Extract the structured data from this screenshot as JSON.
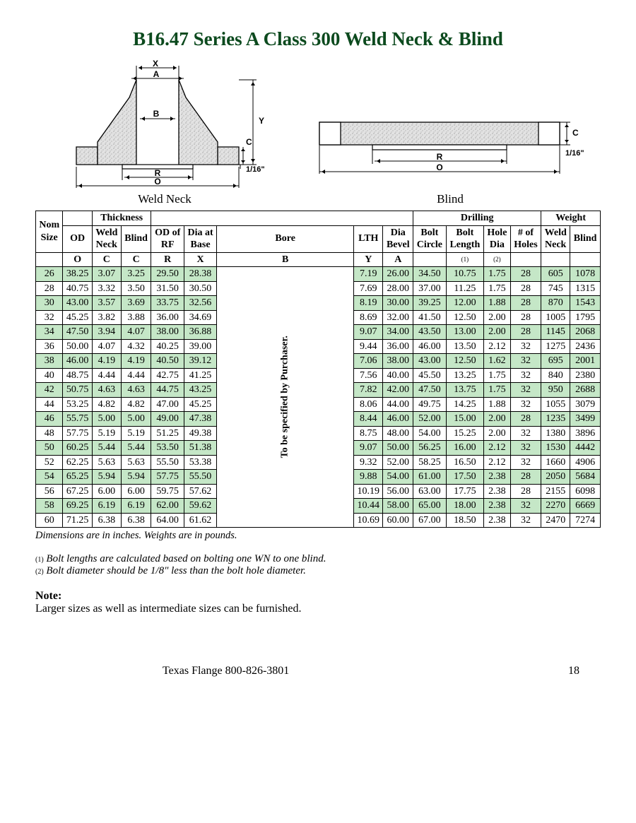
{
  "title": "B16.47 Series A Class 300 Weld Neck & Blind",
  "title_color": "#0c4a1e",
  "diagrams": {
    "weld_neck_caption": "Weld Neck",
    "blind_caption": "Blind",
    "dim_labels": {
      "X": "X",
      "A": "A",
      "B": "B",
      "Y": "Y",
      "C": "C",
      "R": "R",
      "O": "O",
      "sixteenth": "1/16\""
    },
    "fill_color": "#d9d9d9",
    "stroke_color": "#000000"
  },
  "table": {
    "header_groups": {
      "nom_size": "Nom\nSize",
      "thickness": "Thickness",
      "drilling": "Drilling",
      "weight": "Weight"
    },
    "columns_row2": {
      "od": "OD",
      "weld_neck": "Weld\nNeck",
      "blind": "Blind",
      "od_of_rf": "OD of\nRF",
      "dia_at_base": "Dia at\nBase",
      "bore": "Bore",
      "lth": "LTH",
      "dia_bevel": "Dia\nBevel",
      "bolt_circle": "Bolt\nCircle",
      "bolt_length": "Bolt\nLength",
      "hole_dia": "Hole\nDia",
      "num_holes": "# of\nHoles",
      "weld_neck_w": "Weld\nNeck",
      "blind_w": "Blind"
    },
    "columns_row3": {
      "o": "O",
      "c1": "C",
      "c2": "C",
      "r": "R",
      "x": "X",
      "b": "B",
      "y": "Y",
      "a": "A",
      "blank1": "",
      "fn1": "(1)",
      "fn2": "(2)",
      "blank2": "",
      "blank3": "",
      "blank4": ""
    },
    "bore_text": "To be specified by Purchaser.",
    "row_even_bg": "#c5e7c7",
    "rows": [
      [
        "26",
        "38.25",
        "3.07",
        "3.25",
        "29.50",
        "28.38",
        "7.19",
        "26.00",
        "34.50",
        "10.75",
        "1.75",
        "28",
        "605",
        "1078"
      ],
      [
        "28",
        "40.75",
        "3.32",
        "3.50",
        "31.50",
        "30.50",
        "7.69",
        "28.00",
        "37.00",
        "11.25",
        "1.75",
        "28",
        "745",
        "1315"
      ],
      [
        "30",
        "43.00",
        "3.57",
        "3.69",
        "33.75",
        "32.56",
        "8.19",
        "30.00",
        "39.25",
        "12.00",
        "1.88",
        "28",
        "870",
        "1543"
      ],
      [
        "32",
        "45.25",
        "3.82",
        "3.88",
        "36.00",
        "34.69",
        "8.69",
        "32.00",
        "41.50",
        "12.50",
        "2.00",
        "28",
        "1005",
        "1795"
      ],
      [
        "34",
        "47.50",
        "3.94",
        "4.07",
        "38.00",
        "36.88",
        "9.07",
        "34.00",
        "43.50",
        "13.00",
        "2.00",
        "28",
        "1145",
        "2068"
      ],
      [
        "36",
        "50.00",
        "4.07",
        "4.32",
        "40.25",
        "39.00",
        "9.44",
        "36.00",
        "46.00",
        "13.50",
        "2.12",
        "32",
        "1275",
        "2436"
      ],
      [
        "38",
        "46.00",
        "4.19",
        "4.19",
        "40.50",
        "39.12",
        "7.06",
        "38.00",
        "43.00",
        "12.50",
        "1.62",
        "32",
        "695",
        "2001"
      ],
      [
        "40",
        "48.75",
        "4.44",
        "4.44",
        "42.75",
        "41.25",
        "7.56",
        "40.00",
        "45.50",
        "13.25",
        "1.75",
        "32",
        "840",
        "2380"
      ],
      [
        "42",
        "50.75",
        "4.63",
        "4.63",
        "44.75",
        "43.25",
        "7.82",
        "42.00",
        "47.50",
        "13.75",
        "1.75",
        "32",
        "950",
        "2688"
      ],
      [
        "44",
        "53.25",
        "4.82",
        "4.82",
        "47.00",
        "45.25",
        "8.06",
        "44.00",
        "49.75",
        "14.25",
        "1.88",
        "32",
        "1055",
        "3079"
      ],
      [
        "46",
        "55.75",
        "5.00",
        "5.00",
        "49.00",
        "47.38",
        "8.44",
        "46.00",
        "52.00",
        "15.00",
        "2.00",
        "28",
        "1235",
        "3499"
      ],
      [
        "48",
        "57.75",
        "5.19",
        "5.19",
        "51.25",
        "49.38",
        "8.75",
        "48.00",
        "54.00",
        "15.25",
        "2.00",
        "32",
        "1380",
        "3896"
      ],
      [
        "50",
        "60.25",
        "5.44",
        "5.44",
        "53.50",
        "51.38",
        "9.07",
        "50.00",
        "56.25",
        "16.00",
        "2.12",
        "32",
        "1530",
        "4442"
      ],
      [
        "52",
        "62.25",
        "5.63",
        "5.63",
        "55.50",
        "53.38",
        "9.32",
        "52.00",
        "58.25",
        "16.50",
        "2.12",
        "32",
        "1660",
        "4906"
      ],
      [
        "54",
        "65.25",
        "5.94",
        "5.94",
        "57.75",
        "55.50",
        "9.88",
        "54.00",
        "61.00",
        "17.50",
        "2.38",
        "28",
        "2050",
        "5684"
      ],
      [
        "56",
        "67.25",
        "6.00",
        "6.00",
        "59.75",
        "57.62",
        "10.19",
        "56.00",
        "63.00",
        "17.75",
        "2.38",
        "28",
        "2155",
        "6098"
      ],
      [
        "58",
        "69.25",
        "6.19",
        "6.19",
        "62.00",
        "59.62",
        "10.44",
        "58.00",
        "65.00",
        "18.00",
        "2.38",
        "32",
        "2270",
        "6669"
      ],
      [
        "60",
        "71.25",
        "6.38",
        "6.38",
        "64.00",
        "61.62",
        "10.69",
        "60.00",
        "67.00",
        "18.50",
        "2.38",
        "32",
        "2470",
        "7274"
      ]
    ]
  },
  "dim_note": "Dimensions are in inches.  Weights are in pounds.",
  "footnotes": {
    "fn1_num": "(1)",
    "fn1": " Bolt lengths are calculated based on bolting one WN to one blind.",
    "fn2_num": "(2)",
    "fn2": " Bolt diameter should be 1/8\" less than the bolt hole diameter."
  },
  "note": {
    "label": "Note:",
    "text": "Larger sizes as well as intermediate sizes can be furnished."
  },
  "footer": {
    "company": "Texas Flange 800-826-3801",
    "page": "18"
  }
}
